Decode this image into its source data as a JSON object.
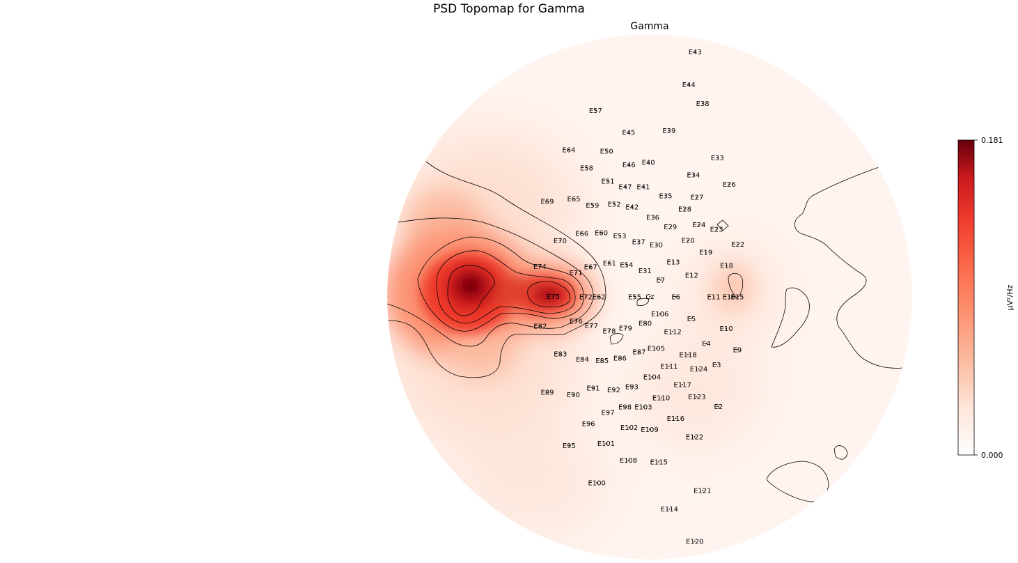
{
  "chart_data": {
    "type": "heatmap",
    "subtype": "eeg-topomap",
    "suptitle": "PSD Topomap for Gamma",
    "title": "Gamma",
    "colormap": [
      "#ffffff",
      "#fde0d2",
      "#fcbba1",
      "#fc9272",
      "#fb6a4a",
      "#ef3b2c",
      "#cb181d",
      "#67000d"
    ],
    "colorbar": {
      "label": "µV²/Hz",
      "vmin": 0.0,
      "vmax": 0.181,
      "tick_labels": [
        "0.181",
        "0.000"
      ]
    },
    "hotspots": [
      {
        "electrode": "E75",
        "value": 0.181
      },
      {
        "electrode": "E62",
        "value": 0.165
      },
      {
        "electrode": "E72",
        "value": 0.15
      },
      {
        "electrode": "E70",
        "value": 0.12
      },
      {
        "electrode": "E71",
        "value": 0.13
      },
      {
        "electrode": "E12",
        "value": 0.03
      }
    ],
    "electrodes": [
      {
        "name": "E43",
        "u": 0.173,
        "v": -0.932
      },
      {
        "name": "E44",
        "u": 0.149,
        "v": -0.808
      },
      {
        "name": "E38",
        "u": 0.202,
        "v": -0.736
      },
      {
        "name": "E57",
        "u": -0.206,
        "v": -0.71
      },
      {
        "name": "E45",
        "u": -0.08,
        "v": -0.626
      },
      {
        "name": "E39",
        "u": 0.074,
        "v": -0.632
      },
      {
        "name": "E64",
        "u": -0.308,
        "v": -0.56
      },
      {
        "name": "E50",
        "u": -0.164,
        "v": -0.555
      },
      {
        "name": "E33",
        "u": 0.258,
        "v": -0.529
      },
      {
        "name": "E58",
        "u": -0.24,
        "v": -0.491
      },
      {
        "name": "E46",
        "u": -0.079,
        "v": -0.502
      },
      {
        "name": "E40",
        "u": -0.005,
        "v": -0.512
      },
      {
        "name": "E34",
        "u": 0.167,
        "v": -0.464
      },
      {
        "name": "E26",
        "u": 0.303,
        "v": -0.429
      },
      {
        "name": "E51",
        "u": -0.159,
        "v": -0.44
      },
      {
        "name": "E47",
        "u": -0.093,
        "v": -0.419
      },
      {
        "name": "E41",
        "u": -0.024,
        "v": -0.419
      },
      {
        "name": "E35",
        "u": 0.061,
        "v": -0.385
      },
      {
        "name": "E27",
        "u": 0.18,
        "v": -0.379
      },
      {
        "name": "E69",
        "u": -0.39,
        "v": -0.364
      },
      {
        "name": "E65",
        "u": -0.289,
        "v": -0.373
      },
      {
        "name": "E59",
        "u": -0.218,
        "v": -0.349
      },
      {
        "name": "E52",
        "u": -0.135,
        "v": -0.353
      },
      {
        "name": "E42",
        "u": -0.067,
        "v": -0.342
      },
      {
        "name": "E28",
        "u": 0.134,
        "v": -0.334
      },
      {
        "name": "E36",
        "u": 0.012,
        "v": -0.303
      },
      {
        "name": "E29",
        "u": 0.079,
        "v": -0.266
      },
      {
        "name": "E24",
        "u": 0.188,
        "v": -0.274
      },
      {
        "name": "E23",
        "u": 0.255,
        "v": -0.257
      },
      {
        "name": "E60",
        "u": -0.184,
        "v": -0.244
      },
      {
        "name": "E66",
        "u": -0.258,
        "v": -0.241
      },
      {
        "name": "E53",
        "u": -0.114,
        "v": -0.232
      },
      {
        "name": "E37",
        "u": -0.042,
        "v": -0.209
      },
      {
        "name": "E30",
        "u": 0.025,
        "v": -0.197
      },
      {
        "name": "E20",
        "u": 0.146,
        "v": -0.215
      },
      {
        "name": "E70",
        "u": -0.341,
        "v": -0.214
      },
      {
        "name": "E22",
        "u": 0.336,
        "v": -0.2
      },
      {
        "name": "E19",
        "u": 0.214,
        "v": -0.17
      },
      {
        "name": "E13",
        "u": 0.09,
        "v": -0.132
      },
      {
        "name": "E61",
        "u": -0.153,
        "v": -0.128
      },
      {
        "name": "E54",
        "u": -0.088,
        "v": -0.122
      },
      {
        "name": "E67",
        "u": -0.225,
        "v": -0.114
      },
      {
        "name": "E74",
        "u": -0.418,
        "v": -0.115
      },
      {
        "name": "E18",
        "u": 0.293,
        "v": -0.119
      },
      {
        "name": "E31",
        "u": -0.018,
        "v": -0.1
      },
      {
        "name": "E71",
        "u": -0.281,
        "v": -0.091
      },
      {
        "name": "E12",
        "u": 0.16,
        "v": -0.082
      },
      {
        "name": "E7",
        "u": 0.042,
        "v": -0.064
      },
      {
        "name": "E75",
        "u": -0.367,
        "v": -0.001
      },
      {
        "name": "E72",
        "u": -0.243,
        "v": 0.0
      },
      {
        "name": "E62",
        "u": -0.193,
        "v": 0.0
      },
      {
        "name": "E55",
        "u": -0.057,
        "v": 0.0
      },
      {
        "name": "Cz",
        "u": 0.001,
        "v": -0.001
      },
      {
        "name": "E6",
        "u": 0.1,
        "v": 0.0
      },
      {
        "name": "E11",
        "u": 0.244,
        "v": 0.0
      },
      {
        "name": "E16",
        "u": 0.303,
        "v": 0.0
      },
      {
        "name": "E15",
        "u": 0.334,
        "v": 0.0
      },
      {
        "name": "E106",
        "u": 0.039,
        "v": 0.065
      },
      {
        "name": "E76",
        "u": -0.28,
        "v": 0.093
      },
      {
        "name": "E80",
        "u": -0.017,
        "v": 0.101
      },
      {
        "name": "E5",
        "u": 0.159,
        "v": 0.083
      },
      {
        "name": "E82",
        "u": -0.417,
        "v": 0.112
      },
      {
        "name": "E77",
        "u": -0.222,
        "v": 0.11
      },
      {
        "name": "E79",
        "u": -0.092,
        "v": 0.119
      },
      {
        "name": "E112",
        "u": 0.088,
        "v": 0.132
      },
      {
        "name": "E78",
        "u": -0.154,
        "v": 0.13
      },
      {
        "name": "E10",
        "u": 0.292,
        "v": 0.121
      },
      {
        "name": "E4",
        "u": 0.216,
        "v": 0.178
      },
      {
        "name": "E105",
        "u": 0.025,
        "v": 0.196
      },
      {
        "name": "E87",
        "u": -0.04,
        "v": 0.21
      },
      {
        "name": "E9",
        "u": 0.334,
        "v": 0.202
      },
      {
        "name": "E83",
        "u": -0.34,
        "v": 0.218
      },
      {
        "name": "E118",
        "u": 0.146,
        "v": 0.22
      },
      {
        "name": "E84",
        "u": -0.256,
        "v": 0.237
      },
      {
        "name": "E85",
        "u": -0.181,
        "v": 0.243
      },
      {
        "name": "E86",
        "u": -0.113,
        "v": 0.234
      },
      {
        "name": "E111",
        "u": 0.074,
        "v": 0.264
      },
      {
        "name": "E124",
        "u": 0.187,
        "v": 0.275
      },
      {
        "name": "E3",
        "u": 0.255,
        "v": 0.258
      },
      {
        "name": "E104",
        "u": 0.009,
        "v": 0.305
      },
      {
        "name": "E117",
        "u": 0.125,
        "v": 0.334
      },
      {
        "name": "E93",
        "u": -0.068,
        "v": 0.342
      },
      {
        "name": "E91",
        "u": -0.215,
        "v": 0.347
      },
      {
        "name": "E92",
        "u": -0.137,
        "v": 0.354
      },
      {
        "name": "E89",
        "u": -0.39,
        "v": 0.364
      },
      {
        "name": "E90",
        "u": -0.291,
        "v": 0.373
      },
      {
        "name": "E123",
        "u": 0.18,
        "v": 0.381
      },
      {
        "name": "E110",
        "u": 0.044,
        "v": 0.385
      },
      {
        "name": "E2",
        "u": 0.262,
        "v": 0.418
      },
      {
        "name": "E98",
        "u": -0.094,
        "v": 0.419
      },
      {
        "name": "E103",
        "u": -0.024,
        "v": 0.419
      },
      {
        "name": "E97",
        "u": -0.159,
        "v": 0.44
      },
      {
        "name": "E116",
        "u": 0.099,
        "v": 0.463
      },
      {
        "name": "E96",
        "u": -0.233,
        "v": 0.483
      },
      {
        "name": "E109",
        "u": 0.0,
        "v": 0.505
      },
      {
        "name": "E102",
        "u": -0.078,
        "v": 0.498
      },
      {
        "name": "E122",
        "u": 0.171,
        "v": 0.533
      },
      {
        "name": "E101",
        "u": -0.166,
        "v": 0.559
      },
      {
        "name": "E95",
        "u": -0.307,
        "v": 0.566
      },
      {
        "name": "E108",
        "u": -0.081,
        "v": 0.622
      },
      {
        "name": "E115",
        "u": 0.035,
        "v": 0.628
      },
      {
        "name": "E100",
        "u": -0.201,
        "v": 0.708
      },
      {
        "name": "E121",
        "u": 0.201,
        "v": 0.737
      },
      {
        "name": "E114",
        "u": 0.075,
        "v": 0.808
      },
      {
        "name": "E120",
        "u": 0.172,
        "v": 0.931
      }
    ]
  }
}
